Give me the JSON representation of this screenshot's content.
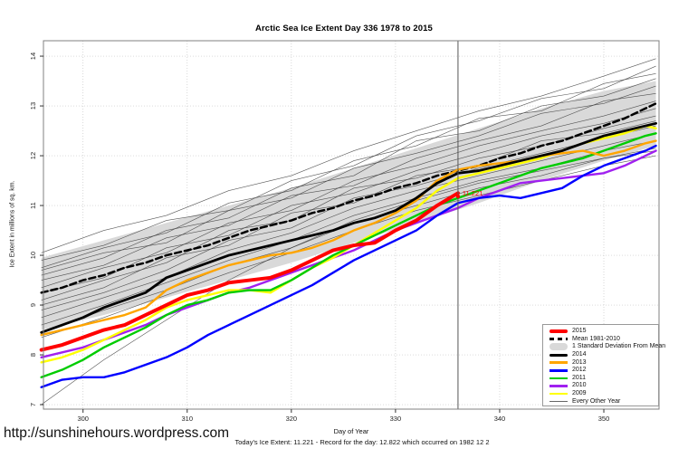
{
  "title": "Arctic Sea Ice Extent Day 336 1978 to 2015",
  "footer": {
    "url": "http://sunshinehours.wordpress.com",
    "caption": "Today's Ice Extent: 11.221  - Record for the day: 12.822 which occurred on 1982 12 2"
  },
  "legend": {
    "items": [
      {
        "label": "2015",
        "type": "line",
        "color": "#FF0000",
        "thickness": 4
      },
      {
        "label": "Mean 1981-2010",
        "type": "dashed-line",
        "color": "#000000",
        "thickness": 3
      },
      {
        "label": "1 Standard Deviation From Mean",
        "type": "band",
        "color": "#D9D9D9"
      },
      {
        "label": "2014",
        "type": "line",
        "color": "#000000",
        "thickness": 3
      },
      {
        "label": "2013",
        "type": "line",
        "color": "#FFA500",
        "thickness": 2.5
      },
      {
        "label": "2012",
        "type": "line",
        "color": "#0000FF",
        "thickness": 2.5
      },
      {
        "label": "2011",
        "type": "line",
        "color": "#00CC00",
        "thickness": 2.5
      },
      {
        "label": "2010",
        "type": "line",
        "color": "#A020F0",
        "thickness": 2.5
      },
      {
        "label": "2009",
        "type": "line",
        "color": "#FFFF00",
        "thickness": 2.5
      },
      {
        "label": "Every Other Year",
        "type": "line",
        "color": "#666666",
        "thickness": 1
      }
    ]
  },
  "chart_data": {
    "type": "line",
    "title": "Arctic Sea Ice Extent Day 336 1978 to 2015",
    "xlabel": "Day of Year",
    "ylabel": "Ice Extent in millions of sq. km.",
    "x_ticks": [
      300,
      310,
      320,
      330,
      340,
      350
    ],
    "y_ticks": [
      7,
      8,
      9,
      10,
      11,
      12,
      13,
      14
    ],
    "x_range": [
      296.2,
      355.3
    ],
    "y_range": [
      6.91,
      14.31
    ],
    "grid": "dotted",
    "grid_color": "#C8C8C8",
    "legend_position": "bottom-right",
    "vline_x": 336,
    "annotation": {
      "x": 336,
      "y": 11.221,
      "label": "11.221",
      "color": "#FF0000"
    },
    "x": [
      296,
      298,
      300,
      302,
      304,
      306,
      308,
      310,
      312,
      314,
      316,
      318,
      320,
      322,
      324,
      326,
      328,
      330,
      332,
      334,
      336,
      338,
      340,
      342,
      344,
      346,
      348,
      350,
      352,
      354,
      355
    ],
    "band": {
      "name": "1 Standard Deviation From Mean",
      "color": "#D9D9D9",
      "x": [
        296,
        302,
        308,
        314,
        320,
        326,
        332,
        338,
        344,
        350,
        355
      ],
      "lower": [
        8.5,
        8.8,
        9.15,
        9.5,
        9.85,
        10.25,
        10.65,
        11.05,
        11.5,
        11.9,
        12.2
      ],
      "upper": [
        9.95,
        10.3,
        10.65,
        11.0,
        11.35,
        11.75,
        12.15,
        12.55,
        12.95,
        13.3,
        13.5
      ]
    },
    "series": [
      {
        "name": "Mean 1981-2010",
        "color": "#000000",
        "width": 2.5,
        "dash": "7,4",
        "y": [
          9.25,
          9.35,
          9.5,
          9.6,
          9.75,
          9.85,
          10.0,
          10.1,
          10.2,
          10.35,
          10.5,
          10.6,
          10.7,
          10.85,
          10.95,
          11.1,
          11.2,
          11.35,
          11.45,
          11.6,
          11.7,
          11.8,
          11.95,
          12.05,
          12.2,
          12.3,
          12.45,
          12.6,
          12.75,
          12.95,
          13.05
        ]
      },
      {
        "name": "2010",
        "color": "#A020F0",
        "width": 2.4,
        "y": [
          7.95,
          8.05,
          8.15,
          8.3,
          8.45,
          8.6,
          8.8,
          8.95,
          9.1,
          9.25,
          9.35,
          9.5,
          9.65,
          9.8,
          9.95,
          10.1,
          10.3,
          10.5,
          10.65,
          10.8,
          10.95,
          11.15,
          11.3,
          11.45,
          11.5,
          11.55,
          11.6,
          11.65,
          11.8,
          12.0,
          12.1
        ]
      },
      {
        "name": "2009",
        "color": "#FFFF00",
        "width": 2.4,
        "y": [
          7.85,
          7.95,
          8.1,
          8.3,
          8.5,
          8.7,
          8.95,
          9.1,
          9.2,
          9.3,
          9.3,
          9.25,
          9.5,
          9.75,
          9.95,
          10.2,
          10.45,
          10.7,
          10.95,
          11.3,
          11.55,
          11.65,
          11.75,
          11.85,
          11.95,
          12.1,
          12.25,
          12.35,
          12.45,
          12.6,
          12.55
        ]
      },
      {
        "name": "2011",
        "color": "#00CC00",
        "width": 2.4,
        "y": [
          7.55,
          7.7,
          7.9,
          8.15,
          8.35,
          8.55,
          8.8,
          9.0,
          9.1,
          9.25,
          9.3,
          9.3,
          9.5,
          9.75,
          10.0,
          10.2,
          10.4,
          10.6,
          10.8,
          11.0,
          11.15,
          11.3,
          11.45,
          11.6,
          11.75,
          11.85,
          11.95,
          12.1,
          12.25,
          12.4,
          12.45
        ]
      },
      {
        "name": "2012",
        "color": "#0000FF",
        "width": 2.4,
        "y": [
          7.35,
          7.5,
          7.55,
          7.55,
          7.65,
          7.8,
          7.95,
          8.15,
          8.4,
          8.6,
          8.8,
          9.0,
          9.2,
          9.4,
          9.65,
          9.9,
          10.1,
          10.3,
          10.5,
          10.8,
          11.05,
          11.15,
          11.2,
          11.15,
          11.25,
          11.35,
          11.6,
          11.8,
          11.95,
          12.1,
          12.2
        ]
      },
      {
        "name": "2013",
        "color": "#FFA500",
        "width": 2.4,
        "y": [
          8.4,
          8.5,
          8.6,
          8.7,
          8.8,
          8.95,
          9.3,
          9.5,
          9.65,
          9.8,
          9.9,
          10.0,
          10.05,
          10.15,
          10.3,
          10.5,
          10.65,
          10.85,
          11.1,
          11.5,
          11.72,
          11.8,
          11.85,
          11.9,
          12.0,
          12.05,
          12.1,
          12.0,
          12.1,
          12.25,
          12.3
        ]
      },
      {
        "name": "2014",
        "color": "#000000",
        "width": 2.8,
        "y": [
          8.45,
          8.6,
          8.75,
          8.95,
          9.1,
          9.25,
          9.55,
          9.7,
          9.85,
          10.0,
          10.1,
          10.2,
          10.3,
          10.4,
          10.5,
          10.65,
          10.75,
          10.9,
          11.15,
          11.45,
          11.65,
          11.7,
          11.8,
          11.9,
          12.0,
          12.1,
          12.25,
          12.4,
          12.5,
          12.6,
          12.65
        ]
      },
      {
        "name": "2015",
        "color": "#FF0000",
        "width": 4,
        "x": [
          296,
          298,
          300,
          302,
          304,
          306,
          308,
          310,
          312,
          314,
          316,
          318,
          320,
          322,
          324,
          326,
          328,
          330,
          332,
          334,
          336
        ],
        "y": [
          8.1,
          8.2,
          8.35,
          8.5,
          8.6,
          8.8,
          9.0,
          9.2,
          9.3,
          9.45,
          9.5,
          9.55,
          9.7,
          9.9,
          10.1,
          10.2,
          10.25,
          10.5,
          10.7,
          11.0,
          11.25
        ]
      }
    ],
    "background_series": {
      "name": "Every Other Year",
      "color": "#3A3A3A",
      "width": 0.6,
      "x": [
        296,
        302,
        308,
        314,
        320,
        326,
        332,
        338,
        344,
        350,
        355
      ],
      "lines": [
        [
          10.05,
          10.5,
          10.8,
          11.3,
          11.6,
          12.1,
          12.5,
          12.9,
          13.2,
          13.6,
          13.95
        ],
        [
          9.9,
          10.2,
          10.7,
          10.9,
          11.5,
          11.8,
          12.4,
          12.7,
          13.15,
          13.35,
          13.8
        ],
        [
          9.75,
          10.15,
          10.45,
          11.05,
          11.3,
          11.9,
          12.2,
          12.75,
          12.9,
          13.45,
          13.65
        ],
        [
          9.6,
          9.95,
          10.5,
          10.75,
          11.35,
          11.6,
          12.3,
          12.5,
          13.0,
          13.2,
          13.55
        ],
        [
          9.7,
          10.05,
          10.25,
          10.9,
          11.15,
          11.75,
          12.05,
          12.4,
          12.85,
          13.05,
          13.4
        ],
        [
          9.5,
          9.8,
          10.35,
          10.6,
          11.2,
          11.4,
          11.95,
          12.3,
          12.6,
          13.1,
          13.25
        ],
        [
          9.35,
          9.75,
          10.05,
          10.65,
          10.9,
          11.5,
          11.8,
          12.2,
          12.5,
          12.8,
          13.1
        ],
        [
          9.25,
          9.55,
          10.15,
          10.4,
          11.0,
          11.25,
          11.7,
          12.05,
          12.4,
          12.65,
          12.95
        ],
        [
          9.1,
          9.5,
          9.85,
          10.5,
          10.7,
          11.35,
          11.55,
          11.95,
          12.2,
          12.55,
          12.8
        ],
        [
          9.0,
          9.35,
          9.95,
          10.2,
          10.85,
          11.05,
          11.6,
          11.8,
          12.3,
          12.45,
          12.7
        ],
        [
          8.9,
          9.25,
          9.7,
          10.3,
          10.55,
          11.15,
          11.4,
          11.75,
          12.05,
          12.35,
          12.6
        ],
        [
          8.75,
          9.15,
          9.55,
          10.1,
          10.45,
          10.95,
          11.3,
          11.6,
          11.9,
          12.2,
          12.45
        ],
        [
          8.6,
          9.0,
          9.45,
          9.9,
          10.3,
          10.8,
          11.15,
          11.5,
          11.75,
          12.1,
          12.3
        ],
        [
          8.45,
          8.9,
          9.3,
          9.8,
          10.15,
          10.65,
          11.0,
          11.35,
          11.6,
          11.95,
          12.15
        ],
        [
          8.35,
          8.75,
          9.2,
          9.65,
          10.05,
          10.5,
          10.9,
          11.2,
          11.5,
          11.8,
          12.0
        ],
        [
          7.0,
          7.9,
          8.7,
          9.5,
          10.15,
          10.7,
          11.1,
          11.45,
          11.7,
          11.95,
          12.1
        ]
      ]
    }
  }
}
